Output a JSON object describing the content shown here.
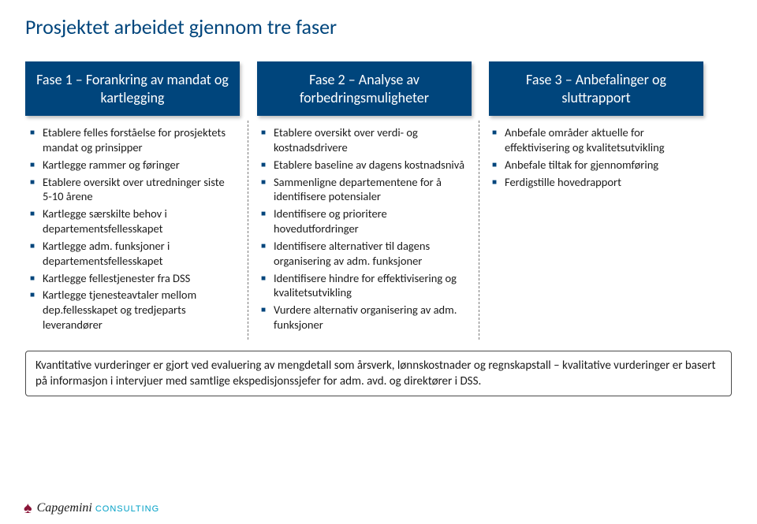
{
  "title": "Prosjektet arbeidet gjennom tre faser",
  "colors": {
    "header_bg": "#00457c",
    "header_text": "#ffffff",
    "bullet": "#00457c",
    "title": "#00457c",
    "body_text": "#1a1a1a",
    "divider": "#7a7a7a",
    "logo_spade": "#8a1538",
    "logo_consulting": "#00a0c6"
  },
  "phases": {
    "p1": {
      "header": "Fase 1 – Forankring av mandat og kartlegging"
    },
    "p2": {
      "header": "Fase 2 – Analyse av forbedringsmuligheter"
    },
    "p3": {
      "header": "Fase 3 – Anbefalinger og sluttrapport"
    }
  },
  "bullets": {
    "c1": {
      "b0": "Etablere felles forståelse for prosjektets mandat og prinsipper",
      "b1": "Kartlegge rammer og føringer",
      "b2": "Etablere oversikt over utredninger siste 5-10 årene",
      "b3": "Kartlegge særskilte behov i departementsfellesskapet",
      "b4": "Kartlegge adm. funksjoner i departementsfellesskapet",
      "b5": "Kartlegge fellestjenester fra DSS",
      "b6": "Kartlegge tjenesteavtaler mellom dep.fellesskapet og tredjeparts leverandører"
    },
    "c2": {
      "b0": "Etablere oversikt over verdi- og kostnadsdrivere",
      "b1": "Etablere baseline av dagens kostnadsnivå",
      "b2": "Sammenligne departementene for å identifisere potensialer",
      "b3": "Identifisere og prioritere hovedutfordringer",
      "b4": "Identifisere alternativer til dagens organisering av adm. funksjoner",
      "b5": "Identifisere hindre for effektivisering og kvalitetsutvikling",
      "b6": "Vurdere alternativ organisering av adm. funksjoner"
    },
    "c3": {
      "b0": "Anbefale områder aktuelle for effektivisering og kvalitetsutvikling",
      "b1": "Anbefale tiltak for gjennomføring",
      "b2": "Ferdigstille hovedrapport"
    }
  },
  "footer": "Kvantitative vurderinger er gjort ved evaluering av mengdetall som årsverk, lønnskostnader og regnskapstall – kvalitative vurderinger er basert på informasjon i intervjuer med samtlige ekspedisjonssjefer for adm. avd. og direktører i DSS.",
  "logo": {
    "brand": "Capgemini",
    "suffix": "CONSULTING"
  }
}
